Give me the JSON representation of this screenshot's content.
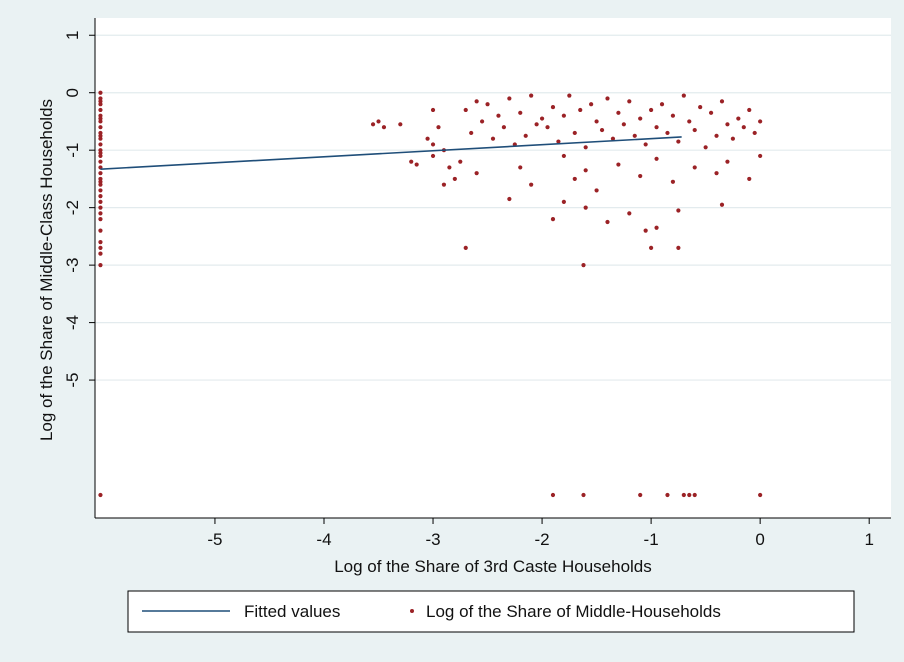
{
  "chart_data": {
    "type": "scatter",
    "title": "",
    "xlabel": "Log of the Share of 3rd Caste Households",
    "ylabel": "Log of the Share of Middle-Class Households",
    "xlim": [
      -6.1,
      1.2
    ],
    "ylim": [
      -7.4,
      1.3
    ],
    "grid": true,
    "legend_position": "bottom",
    "x_ticks": [
      -5,
      -4,
      -3,
      -2,
      -1,
      0,
      1
    ],
    "x_tick_labels": [
      "-5",
      "-4",
      "-3",
      "-2",
      "-1",
      "0",
      "1"
    ],
    "y_ticks": [
      1,
      0,
      -1,
      -2,
      -3,
      -4,
      -5
    ],
    "y_tick_labels": [
      "1",
      "0",
      "-1",
      "-2",
      "-3",
      "-4",
      "-5"
    ],
    "gridlines_y": [
      1,
      0,
      -1,
      -2,
      -3,
      -4,
      -5
    ],
    "series": [
      {
        "name": "Fitted values",
        "kind": "line",
        "color": "#1f4e79",
        "x": [
          -6.05,
          -0.72
        ],
        "y": [
          -1.33,
          -0.77
        ]
      },
      {
        "name": "Log of the Share of Middle-Households",
        "kind": "scatter",
        "color": "#9b2226",
        "x": [
          -6.05,
          -6.05,
          -6.05,
          -6.05,
          -6.05,
          -6.05,
          -6.05,
          -6.05,
          -6.05,
          -6.05,
          -6.05,
          -6.05,
          -6.05,
          -6.05,
          -6.05,
          -6.05,
          -6.05,
          -6.05,
          -6.05,
          -6.05,
          -6.05,
          -6.05,
          -6.05,
          -6.05,
          -6.05,
          -6.05,
          -6.05,
          -6.05,
          -6.05,
          -6.05,
          -6.05,
          -6.05,
          -6.05,
          -3.55,
          -3.5,
          -3.45,
          -3.3,
          -3.2,
          -3.15,
          -3.0,
          -2.95,
          -3.0,
          -2.9,
          -2.85,
          -2.8,
          -2.9,
          -3.05,
          -3.0,
          -2.7,
          -2.65,
          -2.6,
          -2.55,
          -2.5,
          -2.45,
          -2.4,
          -2.35,
          -2.3,
          -2.25,
          -2.2,
          -2.15,
          -2.1,
          -2.05,
          -2.0,
          -1.95,
          -1.9,
          -1.85,
          -1.8,
          -1.75,
          -1.7,
          -1.65,
          -1.6,
          -1.55,
          -1.5,
          -1.45,
          -1.4,
          -1.35,
          -1.3,
          -1.25,
          -1.2,
          -1.15,
          -1.1,
          -1.05,
          -1.0,
          -0.95,
          -0.9,
          -0.85,
          -0.8,
          -0.75,
          -0.7,
          -0.65,
          -0.6,
          -0.55,
          -0.5,
          -0.45,
          -0.4,
          -0.35,
          -0.3,
          -0.25,
          -0.2,
          -0.15,
          -0.1,
          -0.05,
          0.0,
          -2.75,
          -2.6,
          -2.2,
          -2.1,
          -1.8,
          -1.7,
          -1.6,
          -1.5,
          -1.3,
          -1.1,
          -0.95,
          -0.8,
          -0.6,
          -0.4,
          -0.3,
          -0.1,
          0.0,
          -2.7,
          -1.9,
          -1.8,
          -1.6,
          -1.2,
          -0.95,
          -0.75,
          -0.35,
          -1.4,
          -2.3,
          -1.05,
          -1.62,
          -1.0,
          -0.75,
          -6.05,
          -1.9,
          -1.62,
          -1.1,
          -0.85,
          -0.7,
          -0.65,
          -0.6,
          0.0
        ],
        "y": [
          0.0,
          -0.1,
          -0.2,
          -0.3,
          -0.4,
          -0.5,
          -0.6,
          -0.7,
          -0.8,
          -0.9,
          -1.0,
          -1.1,
          -1.2,
          -1.3,
          -1.4,
          -1.5,
          -1.6,
          -1.7,
          -1.8,
          -1.9,
          -2.0,
          -2.1,
          -2.2,
          -2.4,
          -2.6,
          -2.7,
          -2.8,
          -3.0,
          -0.15,
          -0.45,
          -0.75,
          -1.05,
          -1.55,
          -0.55,
          -0.5,
          -0.6,
          -0.55,
          -1.2,
          -1.25,
          -0.3,
          -0.6,
          -0.9,
          -1.0,
          -1.3,
          -1.5,
          -1.6,
          -0.8,
          -1.1,
          -0.3,
          -0.7,
          -0.15,
          -0.5,
          -0.2,
          -0.8,
          -0.4,
          -0.6,
          -0.1,
          -0.9,
          -0.35,
          -0.75,
          -0.05,
          -0.55,
          -0.45,
          -0.6,
          -0.25,
          -0.85,
          -0.4,
          -0.05,
          -0.7,
          -0.3,
          -0.95,
          -0.2,
          -0.5,
          -0.65,
          -0.1,
          -0.8,
          -0.35,
          -0.55,
          -0.15,
          -0.75,
          -0.45,
          -0.9,
          -0.3,
          -0.6,
          -0.2,
          -0.7,
          -0.4,
          -0.85,
          -0.05,
          -0.5,
          -0.65,
          -0.25,
          -0.95,
          -0.35,
          -0.75,
          -0.15,
          -0.55,
          -0.8,
          -0.45,
          -0.6,
          -0.3,
          -0.7,
          -0.5,
          -1.2,
          -1.4,
          -1.3,
          -1.6,
          -1.1,
          -1.5,
          -1.35,
          -1.7,
          -1.25,
          -1.45,
          -1.15,
          -1.55,
          -1.3,
          -1.4,
          -1.2,
          -1.5,
          -1.1,
          -2.7,
          -2.2,
          -1.9,
          -2.0,
          -2.1,
          -2.35,
          -2.05,
          -1.95,
          -2.25,
          -1.85,
          -2.4,
          -3.0,
          -2.7,
          -2.7,
          -7.0,
          -7.0,
          -7.0,
          -7.0,
          -7.0,
          -7.0,
          -7.0,
          -7.0,
          -7.0
        ]
      }
    ]
  }
}
